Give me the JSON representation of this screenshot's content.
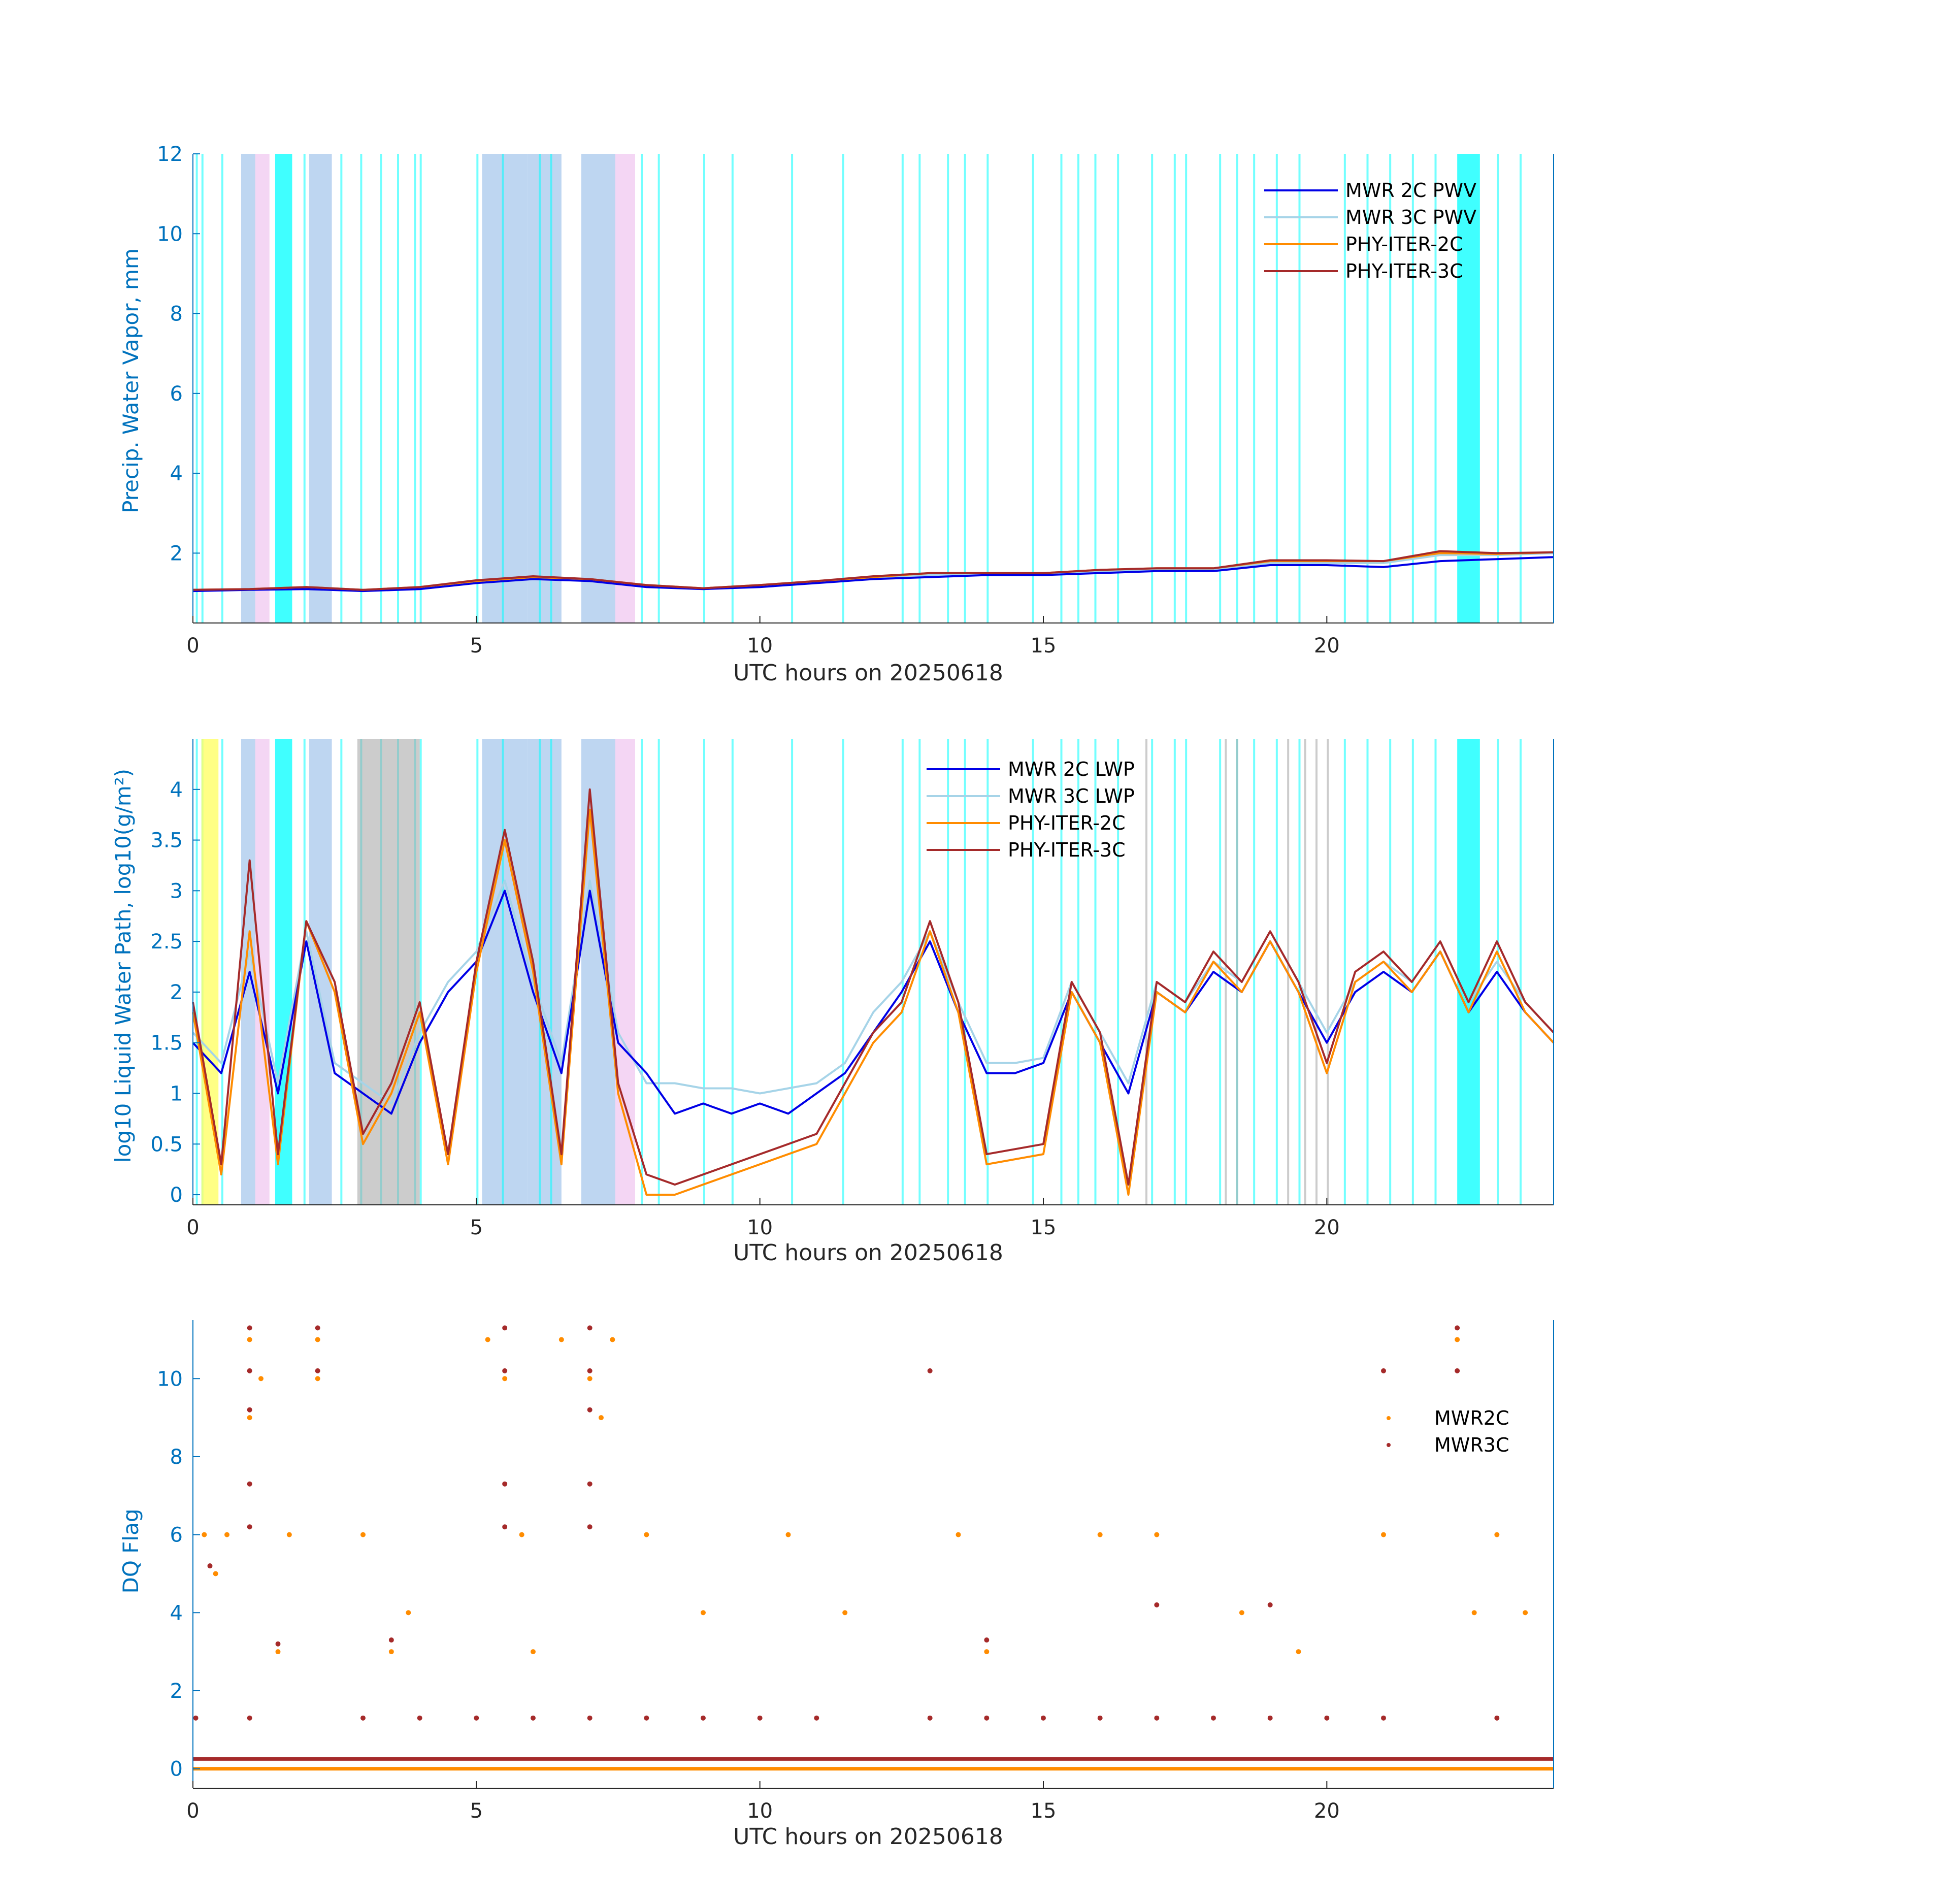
{
  "colors": {
    "axis_blue": "#0072BD",
    "axis_dark": "#262626",
    "mwr2c": "#0000E6",
    "mwr3c": "#A6D4E8",
    "phy2c": "#FF8C00",
    "phy3c": "#A52A2A",
    "shade_cyan": "#00FFFF",
    "shade_blue": "#A8C8EC",
    "shade_pink": "#F0C8F0",
    "shade_gray": "#AAAAAA",
    "shade_yellow": "#FFFF66"
  },
  "chart_data": [
    {
      "type": "line",
      "id": "pwv",
      "ylabel": "Precip. Water Vapor, mm",
      "xlabel": "UTC hours on 20250618",
      "xlim": [
        0,
        24
      ],
      "ylim": [
        0.25,
        12
      ],
      "xticks": [
        0,
        5,
        10,
        15,
        20
      ],
      "yticks": [
        2,
        4,
        6,
        8,
        10,
        12
      ],
      "legend": [
        "MWR 2C PWV",
        "MWR 3C PWV",
        "PHY-ITER-2C",
        "PHY-ITER-3C"
      ],
      "legend_position": "top-right",
      "series": [
        {
          "name": "MWR 2C PWV",
          "x": [
            0,
            1,
            2,
            3,
            4,
            5,
            6,
            7,
            8,
            9,
            10,
            11,
            12,
            13,
            14,
            15,
            16,
            17,
            18,
            19,
            20,
            21,
            22,
            23,
            24
          ],
          "y": [
            1.05,
            1.08,
            1.1,
            1.05,
            1.1,
            1.25,
            1.35,
            1.3,
            1.15,
            1.1,
            1.15,
            1.25,
            1.35,
            1.4,
            1.45,
            1.45,
            1.5,
            1.55,
            1.55,
            1.7,
            1.7,
            1.65,
            1.8,
            1.85,
            1.9
          ]
        },
        {
          "name": "MWR 3C PWV",
          "x": [
            0,
            1,
            2,
            3,
            4,
            5,
            6,
            7,
            8,
            9,
            10,
            11,
            12,
            13,
            14,
            15,
            16,
            17,
            18,
            19,
            20,
            21,
            22,
            23,
            24
          ],
          "y": [
            1.05,
            1.1,
            1.15,
            1.08,
            1.12,
            1.28,
            1.38,
            1.32,
            1.18,
            1.12,
            1.18,
            1.28,
            1.4,
            1.45,
            1.5,
            1.5,
            1.55,
            1.6,
            1.6,
            1.75,
            1.75,
            1.75,
            1.95,
            1.95,
            2.0
          ]
        },
        {
          "name": "PHY-ITER-2C",
          "x": [
            0,
            1,
            2,
            3,
            4,
            5,
            6,
            7,
            8,
            9,
            10,
            11,
            12,
            13,
            14,
            15,
            16,
            17,
            18,
            19,
            20,
            21,
            22,
            23,
            24
          ],
          "y": [
            1.08,
            1.1,
            1.15,
            1.08,
            1.15,
            1.3,
            1.4,
            1.35,
            1.2,
            1.12,
            1.2,
            1.3,
            1.4,
            1.5,
            1.5,
            1.5,
            1.58,
            1.62,
            1.62,
            1.8,
            1.8,
            1.8,
            2.0,
            1.98,
            2.02
          ]
        },
        {
          "name": "PHY-ITER-3C",
          "x": [
            0,
            1,
            2,
            3,
            4,
            5,
            6,
            7,
            8,
            9,
            10,
            11,
            12,
            13,
            14,
            15,
            16,
            17,
            18,
            19,
            20,
            21,
            22,
            23,
            24
          ],
          "y": [
            1.08,
            1.1,
            1.15,
            1.08,
            1.15,
            1.32,
            1.42,
            1.35,
            1.2,
            1.12,
            1.2,
            1.3,
            1.42,
            1.5,
            1.5,
            1.5,
            1.58,
            1.62,
            1.62,
            1.82,
            1.82,
            1.8,
            2.05,
            2.0,
            2.02
          ]
        }
      ]
    },
    {
      "type": "line",
      "id": "lwp",
      "ylabel": "log10 Liquid Water Path, log10(g/m²)",
      "xlabel": "UTC hours on 20250618",
      "xlim": [
        0,
        24
      ],
      "ylim": [
        -0.1,
        4.5
      ],
      "xticks": [
        0,
        5,
        10,
        15,
        20
      ],
      "yticks": [
        0,
        0.5,
        1,
        1.5,
        2,
        2.5,
        3,
        3.5,
        4
      ],
      "ytick_labels": [
        "0",
        "0.5",
        "1",
        "1.5",
        "2",
        "2.5",
        "3",
        "3.5",
        "4"
      ],
      "legend": [
        "MWR 2C LWP",
        "MWR 3C LWP",
        "PHY-ITER-2C",
        "PHY-ITER-3C"
      ],
      "legend_position": "top-center",
      "series": [
        {
          "name": "MWR 2C LWP",
          "x": [
            0,
            0.5,
            1,
            1.5,
            2,
            2.5,
            3,
            3.5,
            4,
            4.5,
            5,
            5.5,
            6,
            6.5,
            7,
            7.5,
            8,
            8.5,
            9,
            9.5,
            10,
            10.5,
            11,
            11.5,
            12,
            12.5,
            13,
            13.5,
            14,
            14.5,
            15,
            15.5,
            16,
            16.5,
            17,
            17.5,
            18,
            18.5,
            19,
            19.5,
            20,
            20.5,
            21,
            21.5,
            22,
            22.5,
            23,
            23.5,
            24
          ],
          "y": [
            1.5,
            1.2,
            2.2,
            1.0,
            2.5,
            1.2,
            1.0,
            0.8,
            1.5,
            2.0,
            2.3,
            3.0,
            2.0,
            1.2,
            3.0,
            1.5,
            1.2,
            0.8,
            0.9,
            0.8,
            0.9,
            0.8,
            1.0,
            1.2,
            1.6,
            2.0,
            2.5,
            1.8,
            1.2,
            1.2,
            1.3,
            2.0,
            1.5,
            1.0,
            2.0,
            1.8,
            2.2,
            2.0,
            2.5,
            2.0,
            1.5,
            2.0,
            2.2,
            2.0,
            2.4,
            1.8,
            2.2,
            1.8,
            1.5
          ]
        },
        {
          "name": "MWR 3C LWP",
          "x": [
            0,
            0.5,
            1,
            1.5,
            2,
            2.5,
            3,
            3.5,
            4,
            4.5,
            5,
            5.5,
            6,
            6.5,
            7,
            7.5,
            8,
            8.5,
            9,
            9.5,
            10,
            10.5,
            11,
            11.5,
            12,
            12.5,
            13,
            13.5,
            14,
            14.5,
            15,
            15.5,
            16,
            16.5,
            17,
            17.5,
            18,
            18.5,
            19,
            19.5,
            20,
            20.5,
            21,
            21.5,
            22,
            22.5,
            23,
            23.5,
            24
          ],
          "y": [
            1.6,
            1.3,
            2.4,
            1.1,
            2.6,
            1.3,
            1.1,
            0.9,
            1.6,
            2.1,
            2.4,
            3.1,
            2.1,
            1.3,
            3.1,
            1.6,
            1.1,
            1.1,
            1.05,
            1.05,
            1.0,
            1.05,
            1.1,
            1.3,
            1.8,
            2.1,
            2.6,
            1.9,
            1.3,
            1.3,
            1.35,
            2.1,
            1.6,
            1.1,
            2.1,
            1.9,
            2.3,
            2.1,
            2.6,
            2.1,
            1.6,
            2.1,
            2.3,
            2.1,
            2.5,
            1.9,
            2.3,
            1.9,
            1.6
          ]
        },
        {
          "name": "PHY-ITER-2C",
          "x": [
            0,
            0.5,
            1,
            1.5,
            2,
            2.5,
            3,
            3.5,
            4,
            4.5,
            5,
            5.5,
            6,
            6.5,
            7,
            7.5,
            8,
            8.5,
            11,
            11.5,
            12,
            12.5,
            13,
            13.5,
            14,
            15,
            15.5,
            16,
            16.5,
            17,
            17.5,
            18,
            18.5,
            19,
            19.5,
            20,
            20.5,
            21,
            21.5,
            22,
            22.5,
            23,
            23.5,
            24
          ],
          "y": [
            1.8,
            0.2,
            2.6,
            0.3,
            2.7,
            2.0,
            0.5,
            1.0,
            1.8,
            0.3,
            2.2,
            3.5,
            2.2,
            0.3,
            3.8,
            1.0,
            0.0,
            0.0,
            0.5,
            1.0,
            1.5,
            1.8,
            2.6,
            1.8,
            0.3,
            0.4,
            2.0,
            1.5,
            0.0,
            2.0,
            1.8,
            2.3,
            2.0,
            2.5,
            2.0,
            1.2,
            2.1,
            2.3,
            2.0,
            2.4,
            1.8,
            2.4,
            1.8,
            1.5
          ]
        },
        {
          "name": "PHY-ITER-3C",
          "x": [
            0,
            0.5,
            1,
            1.5,
            2,
            2.5,
            3,
            3.5,
            4,
            4.5,
            5,
            5.5,
            6,
            6.5,
            7,
            7.5,
            8,
            8.5,
            11,
            11.5,
            12,
            12.5,
            13,
            13.5,
            14,
            15,
            15.5,
            16,
            16.5,
            17,
            17.5,
            18,
            18.5,
            19,
            19.5,
            20,
            20.5,
            21,
            21.5,
            22,
            22.5,
            23,
            23.5,
            24
          ],
          "y": [
            1.9,
            0.3,
            3.3,
            0.4,
            2.7,
            2.1,
            0.6,
            1.1,
            1.9,
            0.4,
            2.3,
            3.6,
            2.3,
            0.4,
            4.0,
            1.1,
            0.2,
            0.1,
            0.6,
            1.1,
            1.6,
            1.9,
            2.7,
            1.9,
            0.4,
            0.5,
            2.1,
            1.6,
            0.1,
            2.1,
            1.9,
            2.4,
            2.1,
            2.6,
            2.1,
            1.3,
            2.2,
            2.4,
            2.1,
            2.5,
            1.9,
            2.5,
            1.9,
            1.6
          ]
        }
      ]
    },
    {
      "type": "scatter",
      "id": "dq",
      "ylabel": "DQ Flag",
      "xlabel": "UTC hours on 20250618",
      "xlim": [
        0,
        24
      ],
      "ylim": [
        -0.5,
        11.5
      ],
      "xticks": [
        0,
        5,
        10,
        15,
        20
      ],
      "yticks": [
        0,
        2,
        4,
        6,
        8,
        10
      ],
      "legend": [
        "MWR2C",
        "MWR3C"
      ],
      "legend_position": "right",
      "series": [
        {
          "name": "MWR2C",
          "points": [
            [
              0.2,
              6
            ],
            [
              0.4,
              5
            ],
            [
              0.6,
              6
            ],
            [
              1.0,
              9
            ],
            [
              1.0,
              11
            ],
            [
              1.2,
              10
            ],
            [
              1.5,
              3
            ],
            [
              1.7,
              6
            ],
            [
              2.2,
              11
            ],
            [
              2.2,
              10
            ],
            [
              3.0,
              6
            ],
            [
              3.5,
              3
            ],
            [
              3.8,
              4
            ],
            [
              5.2,
              11
            ],
            [
              5.5,
              10
            ],
            [
              5.8,
              6
            ],
            [
              6.0,
              3
            ],
            [
              6.5,
              11
            ],
            [
              7.0,
              10
            ],
            [
              7.2,
              9
            ],
            [
              7.4,
              11
            ],
            [
              8.0,
              6
            ],
            [
              9.0,
              4
            ],
            [
              10.5,
              6
            ],
            [
              11.5,
              4
            ],
            [
              13.5,
              6
            ],
            [
              14.0,
              3
            ],
            [
              16.0,
              6
            ],
            [
              17.0,
              6
            ],
            [
              18.5,
              4
            ],
            [
              19.5,
              3
            ],
            [
              21.0,
              6
            ],
            [
              22.3,
              11
            ],
            [
              22.6,
              4
            ],
            [
              23.0,
              6
            ],
            [
              23.5,
              4
            ]
          ],
          "line_y": 0
        },
        {
          "name": "MWR3C",
          "points": [
            [
              0.05,
              1.3
            ],
            [
              0.3,
              5.2
            ],
            [
              1.0,
              11.3
            ],
            [
              1.0,
              10.2
            ],
            [
              1.0,
              9.2
            ],
            [
              1.0,
              7.3
            ],
            [
              1.0,
              6.2
            ],
            [
              1.5,
              3.2
            ],
            [
              1.0,
              1.3
            ],
            [
              2.2,
              11.3
            ],
            [
              2.2,
              10.2
            ],
            [
              3.5,
              3.3
            ],
            [
              3.0,
              1.3
            ],
            [
              4.0,
              1.3
            ],
            [
              5.0,
              1.3
            ],
            [
              5.5,
              11.3
            ],
            [
              5.5,
              10.2
            ],
            [
              5.5,
              7.3
            ],
            [
              5.5,
              6.2
            ],
            [
              6.0,
              1.3
            ],
            [
              7.0,
              11.3
            ],
            [
              7.0,
              10.2
            ],
            [
              7.0,
              9.2
            ],
            [
              7.0,
              7.3
            ],
            [
              7.0,
              6.2
            ],
            [
              7.0,
              1.3
            ],
            [
              8.0,
              1.3
            ],
            [
              9.0,
              1.3
            ],
            [
              10.0,
              1.3
            ],
            [
              11.0,
              1.3
            ],
            [
              13.0,
              10.2
            ],
            [
              13.0,
              1.3
            ],
            [
              14.0,
              3.3
            ],
            [
              14.0,
              1.3
            ],
            [
              15.0,
              1.3
            ],
            [
              16.0,
              1.3
            ],
            [
              17.0,
              4.2
            ],
            [
              17.0,
              1.3
            ],
            [
              18.0,
              1.3
            ],
            [
              19.0,
              4.2
            ],
            [
              19.0,
              1.3
            ],
            [
              20.0,
              1.3
            ],
            [
              21.0,
              10.2
            ],
            [
              21.0,
              1.3
            ],
            [
              22.3,
              11.3
            ],
            [
              22.3,
              10.2
            ],
            [
              23.0,
              1.3
            ]
          ],
          "line_y": 0.25
        }
      ]
    }
  ]
}
